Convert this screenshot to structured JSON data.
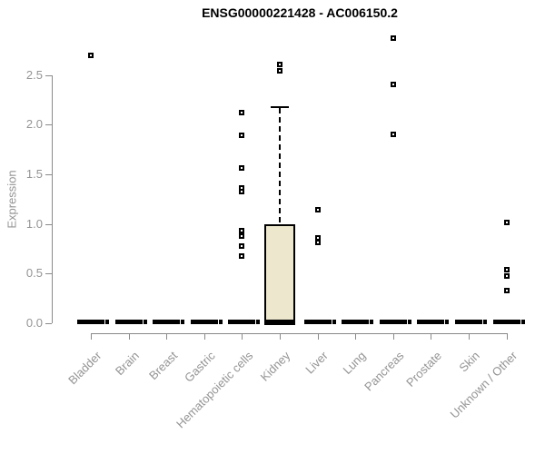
{
  "chart_data": {
    "type": "boxplot",
    "title": "ENSG00000221428 - AC006150.2",
    "ylabel": "Expression",
    "xlabel": "",
    "ylim": [
      0,
      2.9
    ],
    "yticks": [
      0,
      0.5,
      1,
      1.5,
      2,
      2.5
    ],
    "grid": false,
    "legend": "none",
    "categories": [
      "Bladder",
      "Brain",
      "Breast",
      "Gastric",
      "Hematopoietic cells",
      "Kidney",
      "Liver",
      "Lung",
      "Pancreas",
      "Prostate",
      "Skin",
      "Unknown / Other"
    ],
    "boxes": [
      {
        "category": "Bladder",
        "q1": 0,
        "median": 0,
        "q3": 0,
        "whisker_low": 0,
        "whisker_high": 0,
        "outliers": [
          2.7
        ]
      },
      {
        "category": "Brain",
        "q1": 0,
        "median": 0,
        "q3": 0,
        "whisker_low": 0,
        "whisker_high": 0,
        "outliers": []
      },
      {
        "category": "Breast",
        "q1": 0,
        "median": 0,
        "q3": 0,
        "whisker_low": 0,
        "whisker_high": 0,
        "outliers": []
      },
      {
        "category": "Gastric",
        "q1": 0,
        "median": 0,
        "q3": 0,
        "whisker_low": 0,
        "whisker_high": 0,
        "outliers": []
      },
      {
        "category": "Hematopoietic cells",
        "q1": 0,
        "median": 0,
        "q3": 0,
        "whisker_low": 0,
        "whisker_high": 0,
        "outliers": [
          2.12,
          1.89,
          1.56,
          1.36,
          1.33,
          0.93,
          0.88,
          0.78,
          0.68
        ]
      },
      {
        "category": "Kidney",
        "q1": 0,
        "median": 0,
        "q3": 1.0,
        "whisker_low": 0,
        "whisker_high": 2.18,
        "outliers": [
          2.61,
          2.54
        ]
      },
      {
        "category": "Liver",
        "q1": 0,
        "median": 0,
        "q3": 0,
        "whisker_low": 0,
        "whisker_high": 0,
        "outliers": [
          1.14,
          0.86,
          0.81
        ]
      },
      {
        "category": "Lung",
        "q1": 0,
        "median": 0,
        "q3": 0,
        "whisker_low": 0,
        "whisker_high": 0,
        "outliers": []
      },
      {
        "category": "Pancreas",
        "q1": 0,
        "median": 0,
        "q3": 0,
        "whisker_low": 0,
        "whisker_high": 0,
        "outliers": [
          2.87,
          2.41,
          1.9
        ]
      },
      {
        "category": "Prostate",
        "q1": 0,
        "median": 0,
        "q3": 0,
        "whisker_low": 0,
        "whisker_high": 0,
        "outliers": []
      },
      {
        "category": "Skin",
        "q1": 0,
        "median": 0,
        "q3": 0,
        "whisker_low": 0,
        "whisker_high": 0,
        "outliers": []
      },
      {
        "category": "Unknown / Other",
        "q1": 0,
        "median": 0,
        "q3": 0,
        "whisker_low": 0,
        "whisker_high": 0,
        "outliers": [
          1.02,
          0.54,
          0.48,
          0.33
        ]
      }
    ],
    "colors": {
      "box_fill": "#ece7cd",
      "box_border": "#000000",
      "axis_line": "#8a8a8a",
      "tick_label": "#949494",
      "title": "#000000"
    }
  }
}
